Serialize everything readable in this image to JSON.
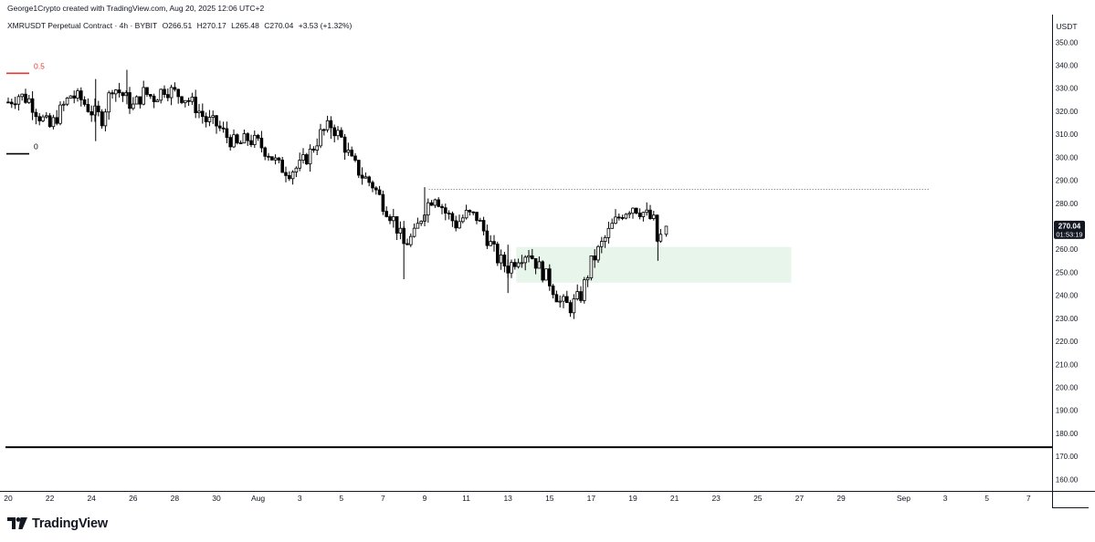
{
  "header": {
    "credit": "George1Crypto created with TradingView.com, Aug 20, 2025 12:06 UTC+2"
  },
  "legend": {
    "symbol": "XMRUSDT Perpetual Contract · 4h · BYBIT",
    "open": "O266.51",
    "high": "H270.17",
    "low": "L265.48",
    "close": "C270.04",
    "change": "+3.53 (+1.32%)"
  },
  "branding": {
    "name": "TradingView"
  },
  "colors": {
    "candle": "#000000",
    "zone_fill": "#e7f5ea",
    "fib_05": "#e53935",
    "fib_0": "#000000",
    "price_label_bg": "#131722"
  },
  "chart_data": {
    "type": "candlestick",
    "currency": "USDT",
    "y_ticks": [
      160,
      170,
      180,
      190,
      200,
      210,
      220,
      230,
      240,
      250,
      260,
      270,
      280,
      290,
      300,
      310,
      320,
      330,
      340,
      350
    ],
    "ylim": [
      157,
      358
    ],
    "x_ticks": [
      {
        "label": "20",
        "day": 0
      },
      {
        "label": "22",
        "day": 2
      },
      {
        "label": "24",
        "day": 4
      },
      {
        "label": "26",
        "day": 6
      },
      {
        "label": "28",
        "day": 8
      },
      {
        "label": "30",
        "day": 10
      },
      {
        "label": "Aug",
        "day": 12
      },
      {
        "label": "3",
        "day": 14
      },
      {
        "label": "5",
        "day": 16
      },
      {
        "label": "7",
        "day": 18
      },
      {
        "label": "9",
        "day": 20
      },
      {
        "label": "11",
        "day": 22
      },
      {
        "label": "13",
        "day": 24
      },
      {
        "label": "15",
        "day": 26
      },
      {
        "label": "17",
        "day": 28
      },
      {
        "label": "19",
        "day": 30
      },
      {
        "label": "21",
        "day": 32
      },
      {
        "label": "23",
        "day": 34
      },
      {
        "label": "25",
        "day": 36
      },
      {
        "label": "27",
        "day": 38
      },
      {
        "label": "29",
        "day": 40
      },
      {
        "label": "Sep",
        "day": 43
      },
      {
        "label": "3",
        "day": 45
      },
      {
        "label": "5",
        "day": 47
      },
      {
        "label": "7",
        "day": 49
      }
    ],
    "last_price": {
      "value": 270.04,
      "label": "270.04",
      "countdown": "01:53:19"
    },
    "fib_levels": [
      {
        "label": "0.5",
        "value": 336.5,
        "color": "#e53935"
      },
      {
        "label": "0",
        "value": 301.5,
        "color": "#000000"
      }
    ],
    "dotted_resistance": {
      "value": 286,
      "from_day": 20.2,
      "to_day": 44.2
    },
    "demand_zone": {
      "top": 261,
      "bottom": 245.5,
      "from_day": 24.4,
      "to_day": 37.6
    },
    "horizontal_line": {
      "value": 174
    },
    "close_path": [
      [
        0,
        324
      ],
      [
        0.5,
        327
      ],
      [
        1,
        325
      ],
      [
        1.5,
        318
      ],
      [
        2,
        313
      ],
      [
        2.5,
        320
      ],
      [
        3,
        327
      ],
      [
        3.5,
        325
      ],
      [
        4,
        320
      ],
      [
        4.5,
        317
      ],
      [
        5,
        331
      ],
      [
        5.5,
        327
      ],
      [
        6,
        322
      ],
      [
        6.5,
        328
      ],
      [
        7,
        326
      ],
      [
        7.5,
        330
      ],
      [
        8,
        328
      ],
      [
        8.5,
        326
      ],
      [
        9,
        322
      ],
      [
        9.5,
        316
      ],
      [
        10,
        314
      ],
      [
        10.5,
        309
      ],
      [
        11,
        305
      ],
      [
        11.5,
        308
      ],
      [
        12,
        306
      ],
      [
        12.5,
        302
      ],
      [
        13,
        296
      ],
      [
        13.5,
        294
      ],
      [
        14,
        296
      ],
      [
        14.5,
        302
      ],
      [
        15,
        310
      ],
      [
        15.5,
        314
      ],
      [
        16,
        308
      ],
      [
        16.5,
        298
      ],
      [
        17,
        292
      ],
      [
        17.5,
        288
      ],
      [
        18,
        280
      ],
      [
        18.5,
        273
      ],
      [
        19,
        262
      ],
      [
        19.5,
        266
      ],
      [
        20,
        278
      ],
      [
        20.5,
        284
      ],
      [
        21,
        276
      ],
      [
        21.5,
        271
      ],
      [
        22,
        275
      ],
      [
        22.5,
        274
      ],
      [
        23,
        265
      ],
      [
        23.5,
        256
      ],
      [
        24,
        252
      ],
      [
        24.5,
        257
      ],
      [
        25,
        259
      ],
      [
        25.5,
        252
      ],
      [
        26,
        246
      ],
      [
        26.5,
        237
      ],
      [
        27,
        235
      ],
      [
        27.5,
        240
      ],
      [
        28,
        254
      ],
      [
        28.5,
        262
      ],
      [
        29,
        270
      ],
      [
        29.5,
        276
      ],
      [
        30,
        279
      ],
      [
        30.5,
        276
      ],
      [
        31,
        272
      ],
      [
        31.2,
        262
      ],
      [
        31.5,
        270
      ]
    ],
    "last_candle": {
      "day": 31.6,
      "open": 266.51,
      "high": 270.17,
      "low": 265.48,
      "close": 270.04
    }
  }
}
